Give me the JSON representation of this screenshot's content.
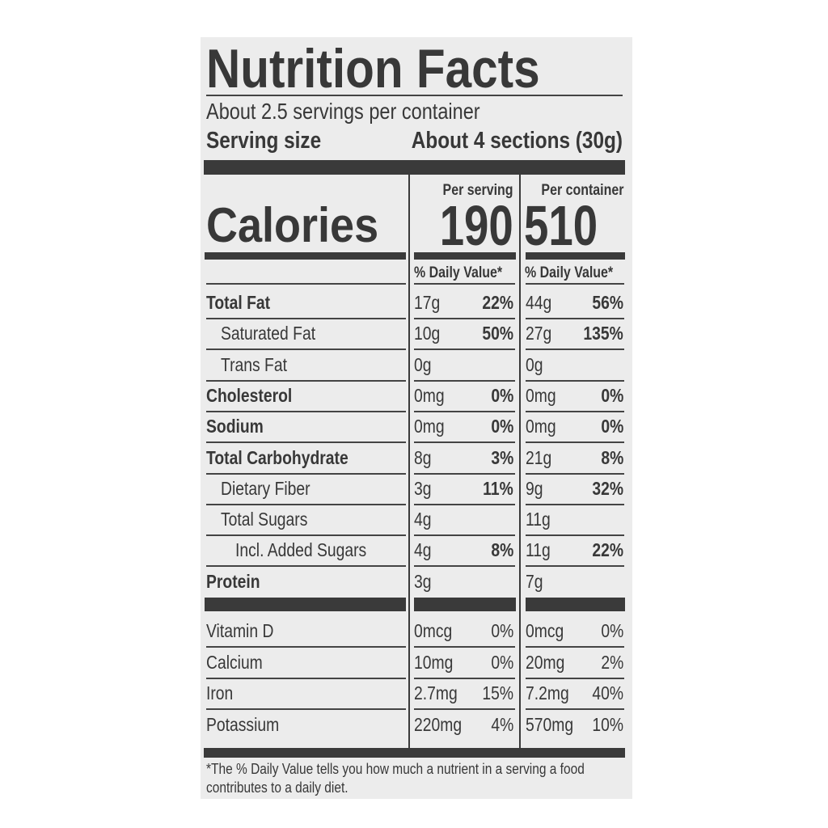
{
  "title": "Nutrition Facts",
  "servings_per_container": "About 2.5 servings per container",
  "serving_size": {
    "label": "Serving size",
    "value": "About 4 sections (30g)"
  },
  "calories": {
    "label": "Calories",
    "per_serving_label": "Per serving",
    "per_serving": "190",
    "per_container_label": "Per container",
    "per_container": "510"
  },
  "daily_value_header": "% Daily Value*",
  "nutrients": [
    {
      "name": "Total Fat",
      "bold": true,
      "indent": 0,
      "serving": "17g",
      "serving_dv": "22%",
      "container": "44g",
      "container_dv": "56%"
    },
    {
      "name": "Saturated Fat",
      "bold": false,
      "indent": 1,
      "serving": "10g",
      "serving_dv": "50%",
      "container": "27g",
      "container_dv": "135%"
    },
    {
      "name": "Trans Fat",
      "bold": false,
      "indent": 1,
      "serving": "0g",
      "serving_dv": "",
      "container": "0g",
      "container_dv": ""
    },
    {
      "name": "Cholesterol",
      "bold": true,
      "indent": 0,
      "serving": "0mg",
      "serving_dv": "0%",
      "container": "0mg",
      "container_dv": "0%"
    },
    {
      "name": "Sodium",
      "bold": true,
      "indent": 0,
      "serving": "0mg",
      "serving_dv": "0%",
      "container": "0mg",
      "container_dv": "0%"
    },
    {
      "name": "Total Carbohydrate",
      "bold": true,
      "indent": 0,
      "serving": "8g",
      "serving_dv": "3%",
      "container": "21g",
      "container_dv": "8%"
    },
    {
      "name": "Dietary Fiber",
      "bold": false,
      "indent": 1,
      "serving": "3g",
      "serving_dv": "11%",
      "container": "9g",
      "container_dv": "32%"
    },
    {
      "name": "Total Sugars",
      "bold": false,
      "indent": 1,
      "serving": "4g",
      "serving_dv": "",
      "container": "11g",
      "container_dv": ""
    },
    {
      "name": "Incl. Added Sugars",
      "bold": false,
      "indent": 2,
      "serving": "4g",
      "serving_dv": "8%",
      "container": "11g",
      "container_dv": "22%"
    },
    {
      "name": "Protein",
      "bold": true,
      "indent": 0,
      "serving": "3g",
      "serving_dv": "",
      "container": "7g",
      "container_dv": ""
    }
  ],
  "vitamins": [
    {
      "name": "Vitamin D",
      "serving": "0mcg",
      "serving_dv": "0%",
      "container": "0mcg",
      "container_dv": "0%"
    },
    {
      "name": "Calcium",
      "serving": "10mg",
      "serving_dv": "0%",
      "container": "20mg",
      "container_dv": "2%"
    },
    {
      "name": "Iron",
      "serving": "2.7mg",
      "serving_dv": "15%",
      "container": "7.2mg",
      "container_dv": "40%"
    },
    {
      "name": "Potassium",
      "serving": "220mg",
      "serving_dv": "4%",
      "container": "570mg",
      "container_dv": "10%"
    }
  ],
  "footnote": "*The % Daily Value tells you how much a nutrient in a serving a food contributes to a daily diet."
}
